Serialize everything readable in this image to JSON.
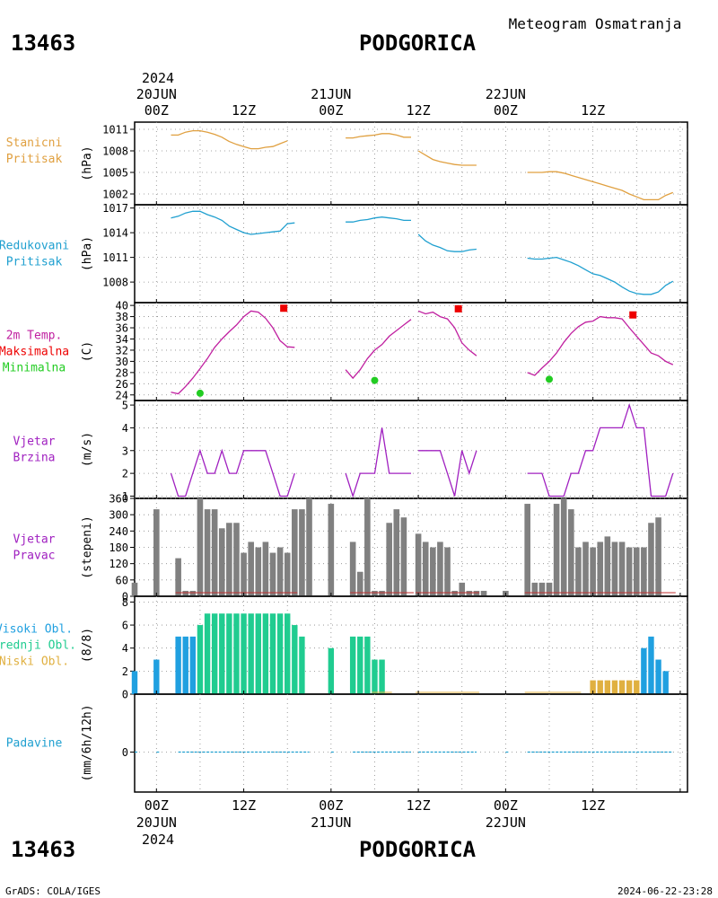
{
  "header": {
    "station_id": "13463",
    "station_name": "PODGORICA",
    "subtitle": "Meteogram Osmatranja"
  },
  "footer": {
    "station_id": "13463",
    "station_name": "PODGORICA",
    "credit": "GrADS: COLA/IGES",
    "timestamp": "2024-06-22-23:28"
  },
  "time_axis": {
    "top_year": "2024",
    "bottom_year": "2024",
    "day_labels": [
      "20JUN",
      "21JUN",
      "22JUN"
    ],
    "hour_ticks": [
      "00Z",
      "12Z",
      "00Z",
      "12Z",
      "00Z",
      "12Z"
    ]
  },
  "colors": {
    "pressure_station": "#e0a040",
    "pressure_reduced": "#20a0d0",
    "temp_curve": "#c020a0",
    "temp_max": "#ee0000",
    "temp_min": "#22cc22",
    "wind": "#a020c0",
    "wind_dir_bar": "#808080",
    "wind_dir_base": "#c03030",
    "cloud_high": "#20a0e0",
    "cloud_mid": "#20cc90",
    "cloud_low": "#e0b040",
    "precip": "#20a0d0"
  },
  "panels": [
    {
      "id": "station-pressure",
      "labels": [
        "Stanicni",
        "Pritisak"
      ],
      "unit": "(hPa)"
    },
    {
      "id": "reduced-pressure",
      "labels": [
        "Redukovani",
        "Pritisak"
      ],
      "unit": "(hPa)"
    },
    {
      "id": "temperature",
      "labels": [
        "2m Temp.",
        "Maksimalna",
        "Minimalna"
      ],
      "unit": "(C)"
    },
    {
      "id": "wind-speed",
      "labels": [
        "Vjetar",
        "Brzina"
      ],
      "unit": "(m/s)"
    },
    {
      "id": "wind-direction",
      "labels": [
        "Vjetar",
        "Pravac"
      ],
      "unit": "(stepeni)"
    },
    {
      "id": "clouds",
      "labels": [
        "Visoki Obl.",
        "Srednji Obl.",
        "Niski Obl."
      ],
      "unit": "(8/8)"
    },
    {
      "id": "precipitation",
      "labels": [
        "Padavine"
      ],
      "unit": "(mm/6h/12h)"
    }
  ],
  "chart_data": [
    {
      "type": "line",
      "panel": "station-pressure",
      "ylabel": "(hPa)",
      "ylim": [
        1000.5,
        1012
      ],
      "yticks": [
        1002,
        1005,
        1008,
        1011
      ],
      "x_unit": "hours since 2024-06-20 00Z",
      "series": [
        {
          "x": [
            2,
            3,
            4,
            5,
            6,
            7,
            8,
            9,
            10,
            11,
            12,
            13,
            14,
            15,
            16,
            17,
            18
          ],
          "y": [
            1010.2,
            1010.2,
            1010.6,
            1010.8,
            1010.8,
            1010.6,
            1010.3,
            1009.9,
            1009.3,
            1008.9,
            1008.6,
            1008.3,
            1008.3,
            1008.5,
            1008.6,
            1009.0,
            1009.4
          ]
        },
        {
          "x": [
            26,
            27,
            28,
            29,
            30,
            31,
            32,
            33,
            34,
            35
          ],
          "y": [
            1009.8,
            1009.8,
            1010.0,
            1010.1,
            1010.2,
            1010.4,
            1010.4,
            1010.2,
            1009.9,
            1009.9
          ]
        },
        {
          "x": [
            36,
            37,
            38,
            39,
            40,
            41,
            42,
            43,
            44
          ],
          "y": [
            1008.0,
            1007.4,
            1006.8,
            1006.5,
            1006.3,
            1006.1,
            1006.0,
            1006.0,
            1006.0
          ]
        },
        {
          "x": [
            51,
            52,
            53,
            54,
            55,
            56,
            57,
            58,
            59,
            60,
            61,
            62,
            63,
            64,
            65,
            66,
            67,
            68,
            69,
            70,
            71
          ],
          "y": [
            1005.0,
            1005.0,
            1005.0,
            1005.1,
            1005.1,
            1004.9,
            1004.6,
            1004.3,
            1004.0,
            1003.7,
            1003.4,
            1003.1,
            1002.8,
            1002.5,
            1002.0,
            1001.6,
            1001.2,
            1001.2,
            1001.2,
            1001.8,
            1002.2
          ]
        }
      ]
    },
    {
      "type": "line",
      "panel": "reduced-pressure",
      "ylabel": "(hPa)",
      "ylim": [
        1005.5,
        1017.4
      ],
      "yticks": [
        1008,
        1011,
        1014,
        1017
      ],
      "x_unit": "hours since 2024-06-20 00Z",
      "series": [
        {
          "x": [
            2,
            3,
            4,
            5,
            6,
            7,
            8,
            9,
            10,
            11,
            12,
            13,
            14,
            15,
            16,
            17,
            18,
            19
          ],
          "y": [
            1015.8,
            1016.0,
            1016.4,
            1016.6,
            1016.6,
            1016.2,
            1015.9,
            1015.5,
            1014.8,
            1014.4,
            1014.0,
            1013.8,
            1013.9,
            1014.0,
            1014.1,
            1014.2,
            1015.1,
            1015.2
          ]
        },
        {
          "x": [
            26,
            27,
            28,
            29,
            30,
            31,
            32,
            33,
            34,
            35
          ],
          "y": [
            1015.3,
            1015.3,
            1015.5,
            1015.6,
            1015.8,
            1015.9,
            1015.8,
            1015.7,
            1015.5,
            1015.5
          ]
        },
        {
          "x": [
            36,
            37,
            38,
            39,
            40,
            41,
            42,
            43,
            44
          ],
          "y": [
            1013.8,
            1013.0,
            1012.5,
            1012.2,
            1011.8,
            1011.7,
            1011.7,
            1011.9,
            1012.0
          ]
        },
        {
          "x": [
            51,
            52,
            53,
            54,
            55,
            56,
            57,
            58,
            59,
            60,
            61,
            62,
            63,
            64,
            65,
            66,
            67,
            68,
            69,
            70,
            71
          ],
          "y": [
            1010.9,
            1010.8,
            1010.8,
            1010.9,
            1011.0,
            1010.7,
            1010.4,
            1010.0,
            1009.5,
            1009.0,
            1008.8,
            1008.4,
            1008.0,
            1007.4,
            1006.9,
            1006.6,
            1006.5,
            1006.5,
            1006.8,
            1007.6,
            1008.1
          ]
        }
      ]
    },
    {
      "type": "line",
      "panel": "temperature",
      "ylabel": "(C)",
      "ylim": [
        23,
        40.5
      ],
      "yticks": [
        24,
        26,
        28,
        30,
        32,
        34,
        36,
        38,
        40
      ],
      "x_unit": "hours since 2024-06-20 00Z",
      "series": [
        {
          "x": [
            2,
            3,
            4,
            5,
            6,
            7,
            8,
            9,
            10,
            11,
            12,
            13,
            14,
            15,
            16,
            17,
            18,
            19
          ],
          "y": [
            24.5,
            24.2,
            25.5,
            27.0,
            28.7,
            30.5,
            32.5,
            34.0,
            35.3,
            36.5,
            38.0,
            39.0,
            38.8,
            37.7,
            36.0,
            33.7,
            32.6,
            32.5
          ]
        },
        {
          "x": [
            26,
            27,
            28,
            29,
            30,
            31,
            32,
            33,
            34,
            35
          ],
          "y": [
            28.5,
            27.0,
            28.5,
            30.5,
            32.0,
            33.0,
            34.5,
            35.5,
            36.5,
            37.5
          ]
        },
        {
          "x": [
            36,
            37,
            38,
            39,
            40,
            41,
            42,
            43,
            44
          ],
          "y": [
            39.0,
            38.5,
            38.8,
            38.0,
            37.6,
            36.0,
            33.3,
            32.0,
            31.0
          ]
        },
        {
          "x": [
            51,
            52,
            53,
            54,
            55,
            56,
            57,
            58,
            59,
            60,
            61,
            62,
            63,
            64,
            65,
            66,
            67,
            68,
            69,
            70,
            71
          ],
          "y": [
            28.0,
            27.5,
            28.8,
            30.0,
            31.5,
            33.4,
            35.0,
            36.2,
            37.0,
            37.2,
            38.0,
            37.8,
            37.8,
            37.6,
            36.0,
            34.5,
            33.0,
            31.5,
            31.0,
            30.0,
            29.4
          ]
        }
      ],
      "maximum": [
        {
          "x": 17.5,
          "y": 39.5
        },
        {
          "x": 41.5,
          "y": 39.4
        },
        {
          "x": 65.5,
          "y": 38.3
        }
      ],
      "minimum": [
        {
          "x": 6,
          "y": 24.3
        },
        {
          "x": 30,
          "y": 26.6
        },
        {
          "x": 54,
          "y": 26.8
        }
      ]
    },
    {
      "type": "line",
      "panel": "wind-speed",
      "ylabel": "(m/s)",
      "ylim": [
        0.9,
        5.2
      ],
      "yticks": [
        1,
        2,
        3,
        4,
        5
      ],
      "x_unit": "hours since 2024-06-20 00Z",
      "series": [
        {
          "x": [
            2,
            3,
            4,
            5,
            6,
            7,
            8,
            9,
            10,
            11,
            12,
            13,
            14,
            15,
            16,
            17,
            18,
            19
          ],
          "y": [
            2,
            1,
            1,
            2,
            3,
            2,
            2,
            3,
            2,
            2,
            3,
            3,
            3,
            3,
            2,
            1,
            1,
            2
          ]
        },
        {
          "x": [
            26,
            27,
            28,
            29,
            30,
            31,
            32,
            33,
            34,
            35
          ],
          "y": [
            2,
            1,
            2,
            2,
            2,
            4,
            2,
            2,
            2,
            2
          ]
        },
        {
          "x": [
            36,
            37,
            38,
            39,
            40,
            41,
            42,
            43,
            44
          ],
          "y": [
            3,
            3,
            3,
            3,
            2,
            1,
            3,
            2,
            3
          ]
        },
        {
          "x": [
            51,
            52,
            53,
            54,
            55,
            56,
            57,
            58,
            59,
            60,
            61,
            62,
            63,
            64,
            65,
            66,
            67,
            68,
            69,
            70,
            71
          ],
          "y": [
            2,
            2,
            2,
            1,
            1,
            1,
            2,
            2,
            3,
            3,
            4,
            4,
            4,
            4,
            5,
            4,
            4,
            1,
            1,
            1,
            2
          ]
        }
      ]
    },
    {
      "type": "bar",
      "panel": "wind-direction",
      "ylabel": "(stepeni)",
      "ylim": [
        0,
        360
      ],
      "yticks": [
        0,
        60,
        120,
        180,
        240,
        300,
        360
      ],
      "x_unit": "hours since 2024-06-20 00Z",
      "x": [
        -3,
        0,
        3,
        4,
        5,
        6,
        7,
        8,
        9,
        10,
        11,
        12,
        13,
        14,
        15,
        16,
        17,
        18,
        19,
        20,
        21,
        24,
        27,
        28,
        29,
        30,
        31,
        32,
        33,
        34,
        35,
        36,
        37,
        38,
        39,
        40,
        41,
        42,
        43,
        44,
        45,
        48,
        51,
        52,
        53,
        54,
        55,
        56,
        57,
        58,
        59,
        60,
        61,
        62,
        63,
        64,
        65,
        66,
        67,
        68,
        69,
        70,
        71
      ],
      "values": [
        50,
        320,
        140,
        20,
        20,
        360,
        320,
        320,
        250,
        270,
        270,
        160,
        200,
        180,
        200,
        160,
        180,
        160,
        320,
        320,
        360,
        340,
        200,
        90,
        360,
        20,
        20,
        270,
        320,
        290,
        0,
        230,
        200,
        180,
        200,
        180,
        20,
        50,
        20,
        20,
        20,
        20,
        340,
        50,
        50,
        50,
        340,
        360,
        320,
        180,
        200,
        180,
        200,
        220,
        200,
        200,
        180,
        180,
        180,
        270,
        290,
        0,
        0
      ]
    },
    {
      "type": "bar",
      "panel": "clouds",
      "ylabel": "(8/8)",
      "ylim": [
        0,
        8.5
      ],
      "yticks": [
        0,
        2,
        4,
        6,
        8
      ],
      "x_unit": "hours since 2024-06-20 00Z",
      "series": [
        {
          "name": "Visoki Obl.",
          "x": [
            -3,
            0,
            3,
            4,
            5,
            67,
            68,
            69,
            70,
            71
          ],
          "values": [
            2,
            3,
            5,
            5,
            5,
            4,
            5,
            3,
            2,
            0
          ]
        },
        {
          "name": "Srednji Obl.",
          "x": [
            6,
            7,
            8,
            9,
            10,
            11,
            12,
            13,
            14,
            15,
            16,
            17,
            18,
            19,
            20,
            24,
            27,
            28,
            29,
            30,
            31
          ],
          "values": [
            6,
            7,
            7,
            7,
            7,
            7,
            7,
            7,
            7,
            7,
            7,
            7,
            7,
            6,
            5,
            4,
            5,
            5,
            5,
            3,
            3
          ]
        },
        {
          "name": "Niski Obl.",
          "x": [
            60,
            61,
            62,
            63,
            64,
            65,
            66
          ],
          "values": [
            1.2,
            1.2,
            1.2,
            1.2,
            1.2,
            1.2,
            1.2
          ]
        }
      ]
    },
    {
      "type": "bar",
      "panel": "precipitation",
      "ylabel": "(mm/6h/12h)",
      "yticks": [
        0
      ],
      "x_unit": "hours since 2024-06-20 00Z",
      "values_note": "0"
    }
  ]
}
